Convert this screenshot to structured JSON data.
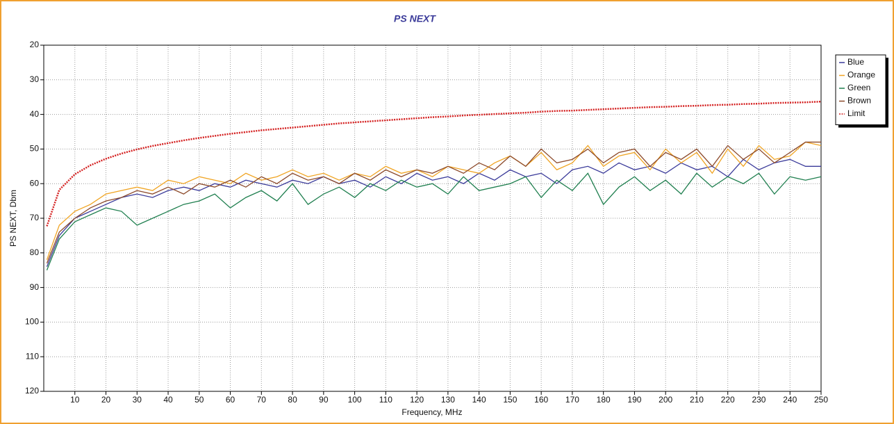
{
  "chart_data": {
    "type": "line",
    "title": "PS NEXT",
    "x_label": "Frequency, MHz",
    "y_label": "PS NEXT, Dbm",
    "x": [
      1,
      5,
      10,
      15,
      20,
      25,
      30,
      35,
      40,
      45,
      50,
      55,
      60,
      65,
      70,
      75,
      80,
      85,
      90,
      95,
      100,
      105,
      110,
      115,
      120,
      125,
      130,
      135,
      140,
      145,
      150,
      155,
      160,
      165,
      170,
      175,
      180,
      185,
      190,
      195,
      200,
      205,
      210,
      215,
      220,
      225,
      230,
      235,
      240,
      245,
      250
    ],
    "series": [
      {
        "name": "Blue",
        "color": "#3b3b9a",
        "style": "solid",
        "values": [
          84,
          75,
          70,
          68,
          66,
          64,
          63,
          64,
          62,
          61,
          62,
          60,
          61,
          59,
          60,
          61,
          59,
          60,
          58,
          60,
          59,
          61,
          58,
          60,
          57,
          59,
          58,
          60,
          57,
          59,
          56,
          58,
          57,
          60,
          56,
          55,
          57,
          54,
          56,
          55,
          57,
          54,
          56,
          55,
          58,
          53,
          56,
          54,
          53,
          55,
          55
        ]
      },
      {
        "name": "Orange",
        "color": "#f0a422",
        "style": "solid",
        "values": [
          82,
          72,
          68,
          66,
          63,
          62,
          61,
          62,
          59,
          60,
          58,
          59,
          60,
          57,
          59,
          58,
          56,
          58,
          57,
          59,
          57,
          58,
          55,
          57,
          56,
          58,
          55,
          56,
          57,
          54,
          52,
          55,
          51,
          56,
          54,
          49,
          55,
          52,
          51,
          56,
          50,
          54,
          51,
          57,
          50,
          55,
          49,
          53,
          52,
          48,
          49
        ]
      },
      {
        "name": "Green",
        "color": "#1f7f4f",
        "style": "solid",
        "values": [
          85,
          76,
          71,
          69,
          67,
          68,
          72,
          70,
          68,
          66,
          65,
          63,
          67,
          64,
          62,
          65,
          60,
          66,
          63,
          61,
          64,
          60,
          62,
          59,
          61,
          60,
          63,
          58,
          62,
          61,
          60,
          58,
          64,
          59,
          62,
          57,
          66,
          61,
          58,
          62,
          59,
          63,
          57,
          61,
          58,
          60,
          57,
          63,
          58,
          59,
          58
        ]
      },
      {
        "name": "Brown",
        "color": "#8c4a2b",
        "style": "solid",
        "values": [
          83,
          74,
          70,
          67,
          65,
          64,
          62,
          63,
          61,
          63,
          60,
          61,
          59,
          61,
          58,
          60,
          57,
          59,
          58,
          60,
          57,
          59,
          56,
          58,
          56,
          57,
          55,
          57,
          54,
          56,
          52,
          55,
          50,
          54,
          53,
          50,
          54,
          51,
          50,
          55,
          51,
          53,
          50,
          55,
          49,
          53,
          50,
          54,
          51,
          48,
          48
        ]
      },
      {
        "name": "Limit",
        "color": "#d42020",
        "style": "dotted",
        "values": [
          72.3,
          61.8,
          57.3,
          54.7,
          52.8,
          51.3,
          50.1,
          49.1,
          48.3,
          47.5,
          46.8,
          46.2,
          45.6,
          45.1,
          44.6,
          44.2,
          43.8,
          43.4,
          43.0,
          42.6,
          42.3,
          42.0,
          41.7,
          41.4,
          41.1,
          40.8,
          40.6,
          40.3,
          40.1,
          39.9,
          39.7,
          39.5,
          39.2,
          39.0,
          38.9,
          38.7,
          38.5,
          38.3,
          38.1,
          37.9,
          37.8,
          37.6,
          37.5,
          37.3,
          37.2,
          37.0,
          36.9,
          36.7,
          36.6,
          36.5,
          36.3
        ]
      }
    ],
    "xlim": [
      0,
      250
    ],
    "xticks": [
      10,
      20,
      30,
      40,
      50,
      60,
      70,
      80,
      90,
      100,
      110,
      120,
      130,
      140,
      150,
      160,
      170,
      180,
      190,
      200,
      210,
      220,
      230,
      240,
      250
    ],
    "ylim": [
      20,
      120
    ],
    "y_reversed": true,
    "yticks": [
      20,
      30,
      40,
      50,
      60,
      70,
      80,
      90,
      100,
      110,
      120
    ],
    "grid": true,
    "legend": "right"
  }
}
